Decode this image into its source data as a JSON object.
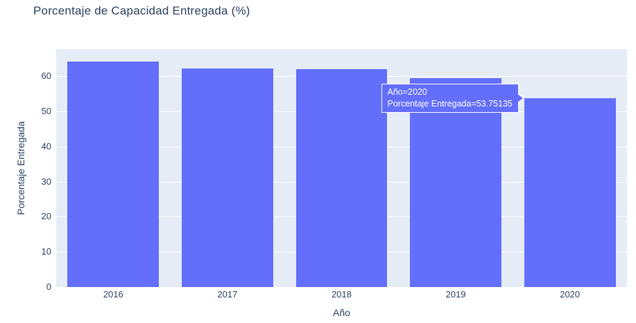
{
  "title": "Porcentaje de Capacidad Entregada (%)",
  "chart_data": {
    "type": "bar",
    "title": "Porcentaje de Capacidad Entregada (%)",
    "categories": [
      "2016",
      "2017",
      "2018",
      "2019",
      "2020"
    ],
    "values": [
      64.2,
      62.1,
      62.0,
      59.4,
      53.75135
    ],
    "xlabel": "Año",
    "ylabel": "Porcentaje Entregada",
    "ylim": [
      0,
      67.7
    ],
    "yticks": [
      0,
      10,
      20,
      30,
      40,
      50,
      60
    ],
    "grid": true,
    "legend": "none",
    "bar_gap_fraction": 0.2
  },
  "tooltip": {
    "line1": "Año=2020",
    "line2": "Porcentaje Entregada=53.75135",
    "anchor_category": "2020",
    "anchor_value": 53.75135
  },
  "colors": {
    "bar": "#636efa",
    "plot_background": "#e5ecf6",
    "paper_background": "#ffffff",
    "gridline": "#ffffff",
    "text": "#2a3f5f",
    "tooltip_background": "#636efa",
    "tooltip_border": "#ffffff",
    "tooltip_text": "#ffffff"
  }
}
